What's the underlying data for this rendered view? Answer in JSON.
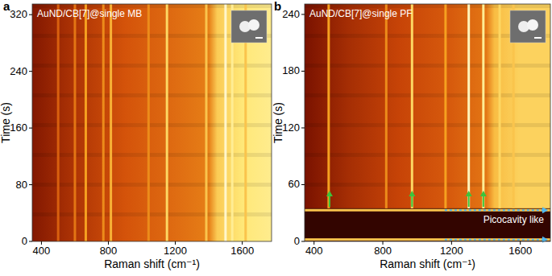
{
  "chart_data": [
    {
      "type": "heatmap",
      "panel_label": "a",
      "title": "AuND/CB[7]@single MB",
      "x_label": "Raman shift (cm⁻¹)",
      "y_label": "Time (s)",
      "xlim": [
        345,
        1775
      ],
      "ylim": [
        0,
        335
      ],
      "xticks": [
        400,
        800,
        1200,
        1600
      ],
      "yticks": [
        0,
        80,
        160,
        240,
        320
      ],
      "colors": [
        "#150000",
        "#7a1200",
        "#d04a08",
        "#f5a020",
        "#ffe878",
        "#fffbe8"
      ],
      "background": {
        "x": [
          345,
          600,
          900,
          1200,
          1400,
          1450,
          1600,
          1775
        ],
        "level": [
          0.22,
          0.32,
          0.42,
          0.48,
          0.52,
          0.72,
          0.8,
          0.84
        ]
      },
      "peaks": [
        {
          "x": 500,
          "t": [
            0,
            335
          ],
          "level": 0.45
        },
        {
          "x": 600,
          "t": [
            0,
            335
          ],
          "level": 0.5
        },
        {
          "x": 665,
          "t": [
            0,
            335
          ],
          "level": 0.6
        },
        {
          "x": 770,
          "t": [
            0,
            335
          ],
          "level": 0.55
        },
        {
          "x": 815,
          "t": [
            0,
            335
          ],
          "level": 0.65
        },
        {
          "x": 1040,
          "t": [
            0,
            335
          ],
          "level": 0.55
        },
        {
          "x": 1150,
          "t": [
            0,
            335
          ],
          "level": 0.75
        },
        {
          "x": 1385,
          "t": [
            0,
            335
          ],
          "level": 0.7
        },
        {
          "x": 1500,
          "t": [
            0,
            335
          ],
          "level": 0.95
        },
        {
          "x": 1540,
          "t": [
            0,
            335
          ],
          "level": 0.85
        },
        {
          "x": 1620,
          "t": [
            0,
            335
          ],
          "level": 0.7
        }
      ]
    },
    {
      "type": "heatmap",
      "panel_label": "b",
      "title": "AuND/CB[7]@single PF",
      "x_label": "Raman shift (cm⁻¹)",
      "y_label": "Time (s)",
      "xlim": [
        345,
        1775
      ],
      "ylim": [
        0,
        251
      ],
      "xticks": [
        400,
        800,
        1200,
        1600
      ],
      "yticks": [
        0,
        60,
        120,
        180,
        240
      ],
      "colors": [
        "#150000",
        "#7a1200",
        "#d04a08",
        "#f5a020",
        "#ffe878",
        "#fffbe8"
      ],
      "background": {
        "x": [
          345,
          600,
          900,
          1200,
          1400,
          1450,
          1600,
          1775
        ],
        "level": [
          0.2,
          0.3,
          0.38,
          0.44,
          0.5,
          0.68,
          0.74,
          0.74
        ]
      },
      "dark_band": {
        "t": [
          0,
          35
        ],
        "level": 0.06
      },
      "peaks": [
        {
          "x": 485,
          "t": [
            35,
            251
          ],
          "level": 0.6
        },
        {
          "x": 820,
          "t": [
            35,
            251
          ],
          "level": 0.55
        },
        {
          "x": 970,
          "t": [
            35,
            251
          ],
          "level": 0.75
        },
        {
          "x": 1165,
          "t": [
            35,
            251
          ],
          "level": 0.6
        },
        {
          "x": 1300,
          "t": [
            35,
            251
          ],
          "level": 0.92
        },
        {
          "x": 1385,
          "t": [
            35,
            251
          ],
          "level": 0.85
        },
        {
          "x": 1480,
          "t": [
            35,
            251
          ],
          "level": 0.75
        },
        {
          "x": 1560,
          "t": [
            35,
            251
          ],
          "level": 0.7
        }
      ],
      "arrows": {
        "x": [
          490,
          970,
          1300,
          1385
        ],
        "t": 45
      },
      "pico_rows": {
        "t": [
          2,
          33
        ],
        "x_start": 1160,
        "level": 0.7
      },
      "annotation": "Picocavity like"
    }
  ]
}
